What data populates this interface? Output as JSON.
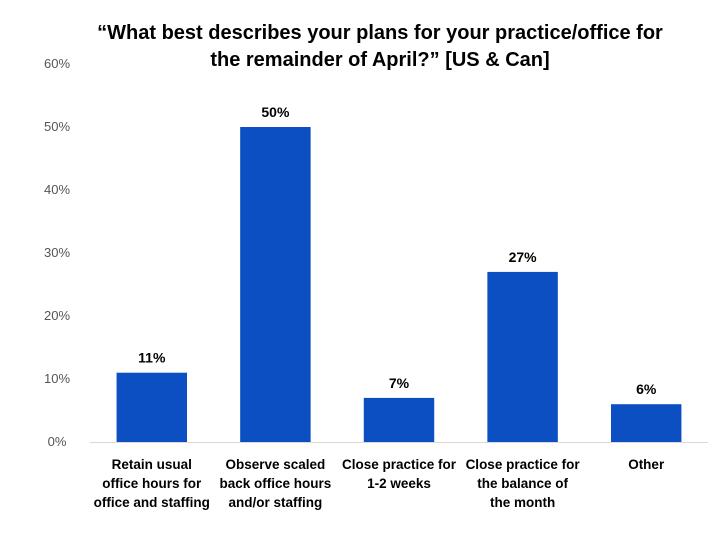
{
  "chart_data": {
    "type": "bar",
    "title_lines": [
      "“What best describes your plans for your practice/office for",
      "the remainder of April?” [US & Can]"
    ],
    "categories": [
      [
        "Retain usual",
        "office hours for",
        "office and staffing"
      ],
      [
        "Observe scaled",
        "back office hours",
        "and/or staffing"
      ],
      [
        "Close practice for",
        "1-2 weeks"
      ],
      [
        "Close practice for",
        "the balance of",
        "the month"
      ],
      [
        "Other"
      ]
    ],
    "values": [
      11,
      50,
      7,
      27,
      6
    ],
    "value_labels": [
      "11%",
      "50%",
      "7%",
      "27%",
      "6%"
    ],
    "yticks": [
      "0%",
      "10%",
      "20%",
      "30%",
      "40%",
      "50%",
      "60%"
    ],
    "ylim": [
      0,
      60
    ],
    "bar_color": "#0b4fc3",
    "grid": false,
    "legend": "none"
  }
}
